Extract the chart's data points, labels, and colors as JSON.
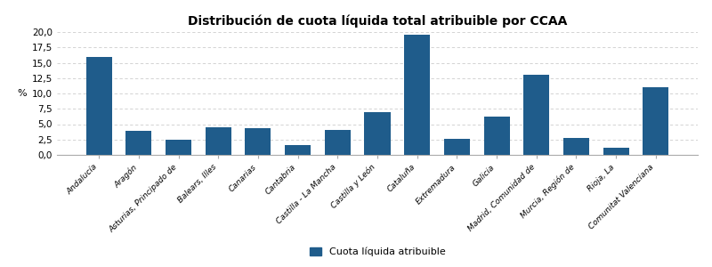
{
  "title": "Distribución de cuota líquida total atribuible por CCAA",
  "categories": [
    "Andalucía",
    "Aragón",
    "Asturias, Principado de",
    "Balears, Illes",
    "Canarias",
    "Cantabria",
    "Castilla - La Mancha",
    "Castilla y León",
    "Cataluña",
    "Extremadura",
    "Galicia",
    "Madrid, Comunidad de",
    "Murcia, Región de",
    "Rioja, La",
    "Comunitat Valenciana"
  ],
  "values": [
    16.0,
    3.9,
    2.5,
    4.5,
    4.4,
    1.6,
    4.0,
    7.0,
    19.5,
    2.6,
    6.2,
    13.1,
    2.8,
    1.1,
    11.0
  ],
  "bar_color": "#1F5C8B",
  "ylabel": "%",
  "ylim": [
    0,
    20.0
  ],
  "yticks": [
    0.0,
    2.5,
    5.0,
    7.5,
    10.0,
    12.5,
    15.0,
    17.5,
    20.0
  ],
  "legend_label": "Cuota líquida atribuible",
  "grid_color": "#cccccc",
  "background_color": "#ffffff",
  "title_fontsize": 10,
  "bar_width": 0.65
}
